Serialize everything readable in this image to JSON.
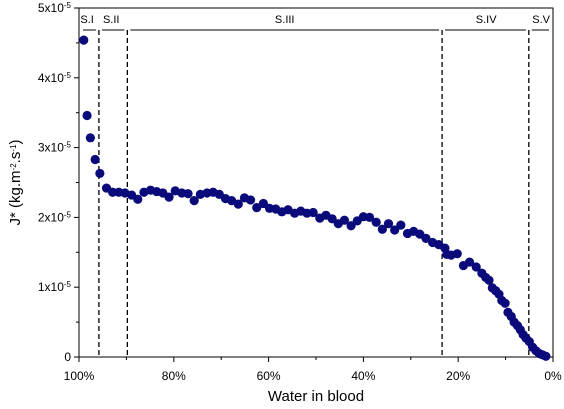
{
  "chart_data": {
    "type": "scatter",
    "xlabel": "Water in blood",
    "ylabel_parts": {
      "main": "J* (kg.m",
      "exp1": "-2",
      "mid": ".s",
      "exp2": "-1",
      "end": ")"
    },
    "x_reversed": true,
    "xlim": [
      0,
      100
    ],
    "ylim": [
      0,
      5
    ],
    "y_multiplier_note": "x10^-5",
    "x_ticks": [
      {
        "value": 100,
        "label": "100%"
      },
      {
        "value": 80,
        "label": "80%"
      },
      {
        "value": 60,
        "label": "60%"
      },
      {
        "value": 40,
        "label": "40%"
      },
      {
        "value": 20,
        "label": "20%"
      },
      {
        "value": 0,
        "label": "0%"
      }
    ],
    "y_ticks": [
      {
        "value": 0,
        "base": "0",
        "exp": ""
      },
      {
        "value": 1,
        "base": "1x10",
        "exp": "-5"
      },
      {
        "value": 2,
        "base": "2x10",
        "exp": "-5"
      },
      {
        "value": 3,
        "base": "3x10",
        "exp": "-5"
      },
      {
        "value": 4,
        "base": "4x10",
        "exp": "-5"
      },
      {
        "value": 5,
        "base": "5x10",
        "exp": "-5"
      }
    ],
    "boundaries": [
      95.8,
      89.8,
      23.4,
      5.1
    ],
    "regions": [
      {
        "label": "S.I",
        "x": 98.3
      },
      {
        "label": "S.II",
        "x": 93.2
      },
      {
        "label": "S.III",
        "x": 56.6
      },
      {
        "label": "S.IV",
        "x": 14.1
      },
      {
        "label": "S.V",
        "x": 2.5
      }
    ],
    "marker_color": "#0a0a7a",
    "points": [
      [
        99.0,
        4.54
      ],
      [
        98.3,
        3.46
      ],
      [
        97.6,
        3.14
      ],
      [
        96.6,
        2.83
      ],
      [
        95.6,
        2.63
      ],
      [
        94.2,
        2.42
      ],
      [
        92.9,
        2.36
      ],
      [
        91.6,
        2.36
      ],
      [
        90.3,
        2.35
      ],
      [
        88.9,
        2.32
      ],
      [
        87.6,
        2.26
      ],
      [
        86.3,
        2.36
      ],
      [
        84.9,
        2.39
      ],
      [
        83.6,
        2.37
      ],
      [
        82.3,
        2.35
      ],
      [
        81.0,
        2.29
      ],
      [
        79.7,
        2.38
      ],
      [
        78.3,
        2.35
      ],
      [
        77.0,
        2.34
      ],
      [
        75.7,
        2.24
      ],
      [
        74.4,
        2.33
      ],
      [
        73.0,
        2.35
      ],
      [
        71.7,
        2.36
      ],
      [
        70.4,
        2.33
      ],
      [
        69.1,
        2.27
      ],
      [
        67.8,
        2.24
      ],
      [
        66.4,
        2.19
      ],
      [
        65.1,
        2.28
      ],
      [
        63.8,
        2.25
      ],
      [
        62.5,
        2.14
      ],
      [
        61.1,
        2.2
      ],
      [
        59.8,
        2.13
      ],
      [
        58.5,
        2.12
      ],
      [
        57.2,
        2.08
      ],
      [
        55.9,
        2.11
      ],
      [
        54.5,
        2.06
      ],
      [
        53.2,
        2.09
      ],
      [
        51.9,
        2.06
      ],
      [
        50.6,
        2.07
      ],
      [
        49.2,
        1.99
      ],
      [
        47.9,
        2.03
      ],
      [
        46.6,
        1.98
      ],
      [
        45.3,
        1.91
      ],
      [
        44.0,
        1.96
      ],
      [
        42.6,
        1.88
      ],
      [
        41.3,
        1.95
      ],
      [
        40.0,
        2.01
      ],
      [
        38.7,
        2.0
      ],
      [
        37.3,
        1.93
      ],
      [
        36.0,
        1.83
      ],
      [
        34.7,
        1.91
      ],
      [
        33.4,
        1.82
      ],
      [
        32.1,
        1.89
      ],
      [
        30.7,
        1.77
      ],
      [
        29.4,
        1.8
      ],
      [
        28.1,
        1.76
      ],
      [
        26.8,
        1.7
      ],
      [
        25.4,
        1.64
      ],
      [
        24.1,
        1.61
      ],
      [
        22.8,
        1.56
      ],
      [
        22.4,
        1.47
      ],
      [
        21.5,
        1.46
      ],
      [
        20.2,
        1.48
      ],
      [
        18.9,
        1.31
      ],
      [
        17.6,
        1.36
      ],
      [
        16.2,
        1.29
      ],
      [
        15.0,
        1.2
      ],
      [
        14.2,
        1.14
      ],
      [
        13.5,
        1.1
      ],
      [
        12.8,
        0.99
      ],
      [
        12.1,
        0.95
      ],
      [
        11.4,
        0.9
      ],
      [
        10.8,
        0.81
      ],
      [
        10.1,
        0.77
      ],
      [
        9.5,
        0.64
      ],
      [
        8.8,
        0.58
      ],
      [
        8.2,
        0.5
      ],
      [
        7.5,
        0.45
      ],
      [
        6.9,
        0.39
      ],
      [
        6.3,
        0.32
      ],
      [
        5.7,
        0.27
      ],
      [
        5.0,
        0.22
      ],
      [
        4.3,
        0.14
      ],
      [
        3.6,
        0.09
      ],
      [
        2.9,
        0.05
      ],
      [
        2.2,
        0.03
      ],
      [
        1.5,
        0.01
      ]
    ]
  }
}
